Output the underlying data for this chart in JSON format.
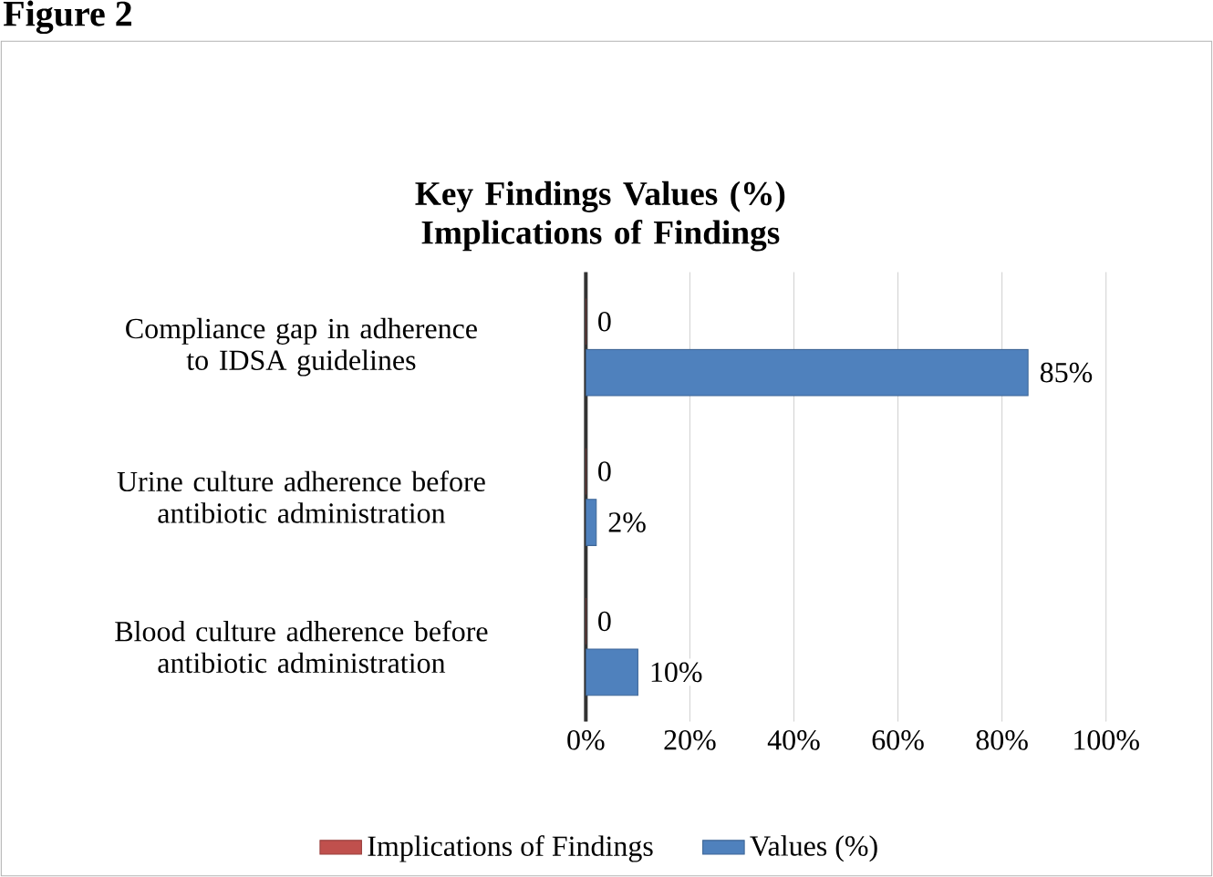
{
  "chart_data": {
    "type": "bar",
    "orientation": "horizontal",
    "title": "Key Findings Values (%) Implications of Findings",
    "annotations": [
      "Figure 2"
    ],
    "categories": [
      "Compliance gap in adherence to IDSA guidelines",
      "Urine culture adherence before antibiotic administration",
      "Blood culture adherence before antibiotic administration"
    ],
    "series": [
      {
        "name": "Implications of Findings",
        "color": "#c0504d",
        "values": [
          0,
          0,
          0
        ],
        "value_labels": [
          "0",
          "0",
          "0"
        ]
      },
      {
        "name": "Values (%)",
        "color": "#4f81bd",
        "values": [
          85,
          2,
          10
        ],
        "value_labels": [
          "85%",
          "2%",
          "10%"
        ]
      }
    ],
    "xlim": [
      0,
      100
    ],
    "xticks": [
      {
        "value": 0,
        "label": "0%"
      },
      {
        "value": 20,
        "label": "20%"
      },
      {
        "value": 40,
        "label": "40%"
      },
      {
        "value": 60,
        "label": "60%"
      },
      {
        "value": 80,
        "label": "80%"
      },
      {
        "value": 100,
        "label": "100%"
      }
    ],
    "grid": "x",
    "legend": "bottom"
  }
}
